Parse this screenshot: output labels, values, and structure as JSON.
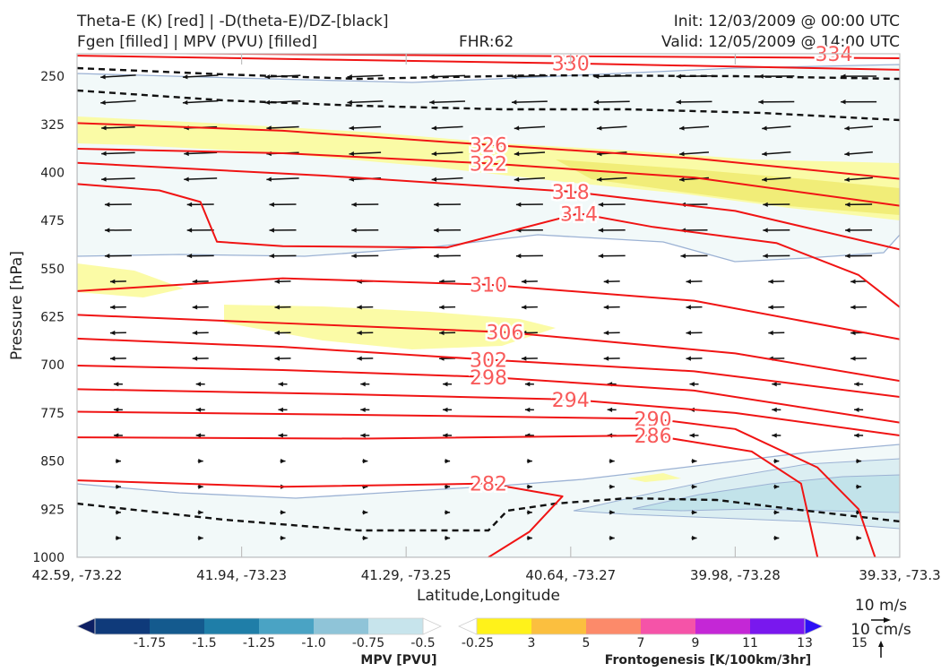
{
  "header": {
    "line1_left": "Theta-E (K) [red] | -D(theta-E)/DZ-[black]",
    "line2_left": "Fgen [filled] | MPV (PVU) [filled]",
    "fhr": "FHR:62",
    "init": "Init: 12/03/2009 @ 00:00 UTC",
    "valid": "Valid: 12/05/2009 @ 14:00 UTC"
  },
  "chart_data": {
    "type": "cross-section",
    "xlabel": "Latitude,Longitude",
    "ylabel": "Pressure [hPa]",
    "ylim": [
      1000,
      215
    ],
    "y_ticks": [
      250,
      325,
      400,
      475,
      550,
      625,
      700,
      775,
      850,
      925,
      1000
    ],
    "x_ticks": [
      {
        "pos": 0.0,
        "label": "42.59, -73.22"
      },
      {
        "pos": 0.2,
        "label": "41.94, -73.23"
      },
      {
        "pos": 0.4,
        "label": "41.29, -73.25"
      },
      {
        "pos": 0.6,
        "label": "40.64, -73.27"
      },
      {
        "pos": 0.8,
        "label": "39.98, -73.28"
      },
      {
        "pos": 1.0,
        "label": "39.33, -73.3"
      }
    ],
    "theta_e_series": [
      {
        "label": "334",
        "label_at": [
          0.92,
          215
        ],
        "points": [
          [
            0.0,
            213
          ],
          [
            0.5,
            218
          ],
          [
            1.0,
            222
          ]
        ]
      },
      {
        "label": "330",
        "label_at": [
          0.6,
          230
        ],
        "points": [
          [
            0.0,
            218
          ],
          [
            0.3,
            224
          ],
          [
            0.6,
            230
          ],
          [
            1.0,
            240
          ]
        ]
      },
      {
        "label": "326",
        "label_at": [
          0.5,
          357
        ],
        "points": [
          [
            0.0,
            323
          ],
          [
            0.25,
            335
          ],
          [
            0.5,
            357
          ],
          [
            0.75,
            378
          ],
          [
            1.0,
            410
          ]
        ]
      },
      {
        "label": "322",
        "label_at": [
          0.5,
          386
        ],
        "points": [
          [
            0.0,
            363
          ],
          [
            0.25,
            370
          ],
          [
            0.5,
            386
          ],
          [
            0.75,
            408
          ],
          [
            1.0,
            452
          ]
        ]
      },
      {
        "label": "318",
        "label_at": [
          0.6,
          430
        ],
        "points": [
          [
            0.0,
            385
          ],
          [
            0.3,
            405
          ],
          [
            0.6,
            430
          ],
          [
            0.8,
            460
          ],
          [
            1.0,
            520
          ]
        ]
      },
      {
        "label": "314",
        "label_at": [
          0.61,
          464
        ],
        "points": [
          [
            0.0,
            418
          ],
          [
            0.1,
            428
          ],
          [
            0.15,
            446
          ],
          [
            0.17,
            508
          ],
          [
            0.25,
            515
          ],
          [
            0.45,
            517
          ],
          [
            0.61,
            464
          ],
          [
            0.7,
            485
          ],
          [
            0.85,
            510
          ],
          [
            0.95,
            560
          ],
          [
            1.0,
            610
          ]
        ]
      },
      {
        "label": "310",
        "label_at": [
          0.5,
          575
        ],
        "points": [
          [
            0.0,
            585
          ],
          [
            0.25,
            565
          ],
          [
            0.5,
            575
          ],
          [
            0.75,
            600
          ],
          [
            1.0,
            660
          ]
        ]
      },
      {
        "label": "306",
        "label_at": [
          0.52,
          649
        ],
        "points": [
          [
            0.0,
            622
          ],
          [
            0.25,
            635
          ],
          [
            0.52,
            649
          ],
          [
            0.8,
            682
          ],
          [
            1.0,
            725
          ]
        ]
      },
      {
        "label": "302",
        "label_at": [
          0.5,
          692
        ],
        "points": [
          [
            0.0,
            659
          ],
          [
            0.25,
            672
          ],
          [
            0.5,
            692
          ],
          [
            0.75,
            710
          ],
          [
            1.0,
            750
          ]
        ]
      },
      {
        "label": "298",
        "label_at": [
          0.5,
          719
        ],
        "points": [
          [
            0.0,
            701
          ],
          [
            0.25,
            708
          ],
          [
            0.5,
            719
          ],
          [
            0.75,
            740
          ],
          [
            1.0,
            790
          ]
        ]
      },
      {
        "label": "294",
        "label_at": [
          0.6,
          754
        ],
        "points": [
          [
            0.0,
            738
          ],
          [
            0.3,
            745
          ],
          [
            0.6,
            754
          ],
          [
            0.8,
            775
          ],
          [
            1.0,
            810
          ]
        ]
      },
      {
        "label": "290",
        "label_at": [
          0.7,
          784
        ],
        "points": [
          [
            0.0,
            773
          ],
          [
            0.35,
            778
          ],
          [
            0.7,
            784
          ],
          [
            0.8,
            800
          ],
          [
            0.9,
            860
          ],
          [
            0.95,
            925
          ],
          [
            0.97,
            1000
          ]
        ]
      },
      {
        "label": "286",
        "label_at": [
          0.7,
          810
        ],
        "points": [
          [
            0.0,
            813
          ],
          [
            0.35,
            815
          ],
          [
            0.7,
            810
          ],
          [
            0.82,
            835
          ],
          [
            0.88,
            885
          ],
          [
            0.9,
            1000
          ]
        ]
      },
      {
        "label": "282",
        "label_at": [
          0.5,
          885
        ],
        "points": [
          [
            0.0,
            880
          ],
          [
            0.25,
            890
          ],
          [
            0.5,
            885
          ],
          [
            0.59,
            905
          ],
          [
            0.55,
            960
          ],
          [
            0.5,
            1000
          ]
        ]
      }
    ],
    "colorbars": [
      {
        "name": "MPV [PVU]",
        "ticks": [
          "-1.75",
          "-1.5",
          "-1.25",
          "-1.0",
          "-0.75",
          "-0.5",
          "-0.25"
        ],
        "colors": [
          "#0d1f63",
          "#0f3a7a",
          "#145a8e",
          "#1f7ea8",
          "#4aa3c4",
          "#8fc4d8",
          "#c7e4ec",
          "#ffffff"
        ]
      },
      {
        "name": "Frontogenesis [K/100km/3hr]",
        "ticks": [
          "3",
          "5",
          "7",
          "9",
          "11",
          "13",
          "15"
        ],
        "colors": [
          "#ffffff",
          "#fff21a",
          "#fbbf3f",
          "#fc8a6a",
          "#f553a8",
          "#c427d6",
          "#7918ee",
          "#2c10f5"
        ]
      }
    ],
    "reference_vectors": [
      {
        "label": "10 m/s",
        "component": "horizontal"
      },
      {
        "label": "10 cm/s",
        "component": "vertical"
      }
    ],
    "colors": {
      "theta_e": "#f01414",
      "theta_e_label": "#f85a5a",
      "stability": "#111111",
      "mpv_fill": "#f2f9f9",
      "fgen_fill": "#fbfb9c",
      "frame": "#c0c0c0"
    }
  }
}
